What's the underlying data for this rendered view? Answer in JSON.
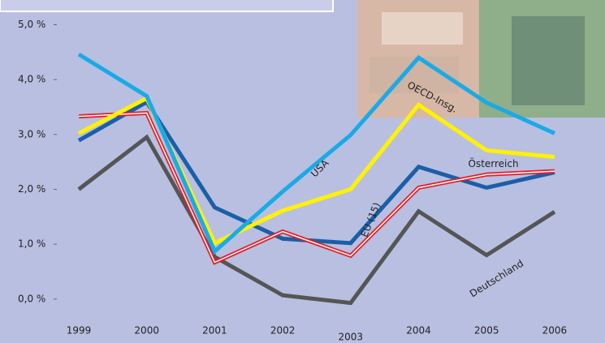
{
  "chart_data": {
    "type": "line",
    "categories": [
      "1999",
      "2000",
      "2001",
      "2002",
      "2003",
      "2004",
      "2005",
      "2006"
    ],
    "series": [
      {
        "name": "Deutschland",
        "color": "#555555",
        "values": [
          2.0,
          2.95,
          0.77,
          0.07,
          -0.07,
          1.6,
          0.8,
          1.59
        ]
      },
      {
        "name": "Österreich",
        "color": "#1a5fa8",
        "values": [
          2.89,
          3.59,
          1.67,
          1.1,
          1.02,
          2.41,
          2.03,
          2.31
        ]
      },
      {
        "name": "EU (15)",
        "color": "#e41e26",
        "values": [
          3.33,
          3.39,
          0.67,
          1.23,
          0.79,
          2.03,
          2.27,
          2.33
        ]
      },
      {
        "name": "OECD-Insg.",
        "color": "#fff200",
        "values": [
          3.02,
          3.66,
          1.02,
          1.61,
          2.0,
          3.54,
          2.71,
          2.59
        ]
      },
      {
        "name": "USA",
        "color": "#1aaae6",
        "values": [
          4.46,
          3.7,
          0.87,
          1.96,
          2.99,
          4.4,
          3.58,
          3.02
        ]
      }
    ],
    "ylim": [
      -0.8,
      5.45
    ],
    "yticks": [
      {
        "value": 0,
        "label": "0,0 %"
      },
      {
        "value": 1,
        "label": "1,0 %"
      },
      {
        "value": 2,
        "label": "2,0 %"
      },
      {
        "value": 3,
        "label": "3,0 %"
      },
      {
        "value": 4,
        "label": "4,0 %"
      },
      {
        "value": 5,
        "label": "5,0 %"
      }
    ]
  }
}
